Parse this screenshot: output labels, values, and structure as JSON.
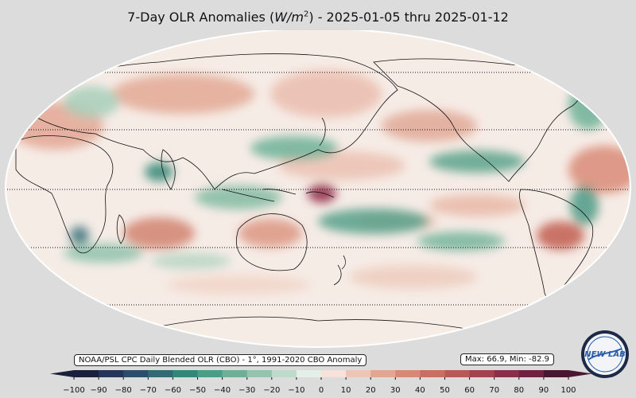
{
  "title": {
    "prefix": "7-Day OLR Anomalies (",
    "unit_var": "W/m",
    "unit_exp": "2",
    "suffix": ") - 2025-01-05 thru 2025-01-12"
  },
  "source_label": "NOAA/PSL CPC Daily Blended OLR (CBO) - 1°, 1991-2020 CBO Anomaly",
  "stats": {
    "max_label": "Max: 66.9,",
    "min_label": "Min: -82.9"
  },
  "logo": {
    "text": "NEW LAB"
  },
  "colorbar": {
    "ticks": [
      "−100",
      "−90",
      "−80",
      "−70",
      "−60",
      "−50",
      "−40",
      "−30",
      "−20",
      "−10",
      "0",
      "10",
      "20",
      "30",
      "40",
      "50",
      "60",
      "70",
      "80",
      "90",
      "100"
    ],
    "colors": {
      "-100": "#1a1f3d",
      "-90": "#23355a",
      "-80": "#2a4d6b",
      "-70": "#2f6b74",
      "-60": "#33877a",
      "-50": "#4c9d86",
      "-40": "#6cb097",
      "-30": "#93c4ad",
      "-20": "#bddbcb",
      "-10": "#e3efe8",
      "0": "#f8f1ec",
      "10": "#f6e2d8",
      "20": "#eec5b4",
      "30": "#e4a690",
      "40": "#d78a73",
      "50": "#c8705f",
      "60": "#b75a55",
      "70": "#a2434f",
      "80": "#8a2f4a",
      "90": "#6e2140",
      "100": "#4a1530"
    }
  },
  "map": {
    "background_color": "#f7efe9",
    "ocean_outline": "#ffffff",
    "graticule_label": "dotted latitude lines"
  }
}
